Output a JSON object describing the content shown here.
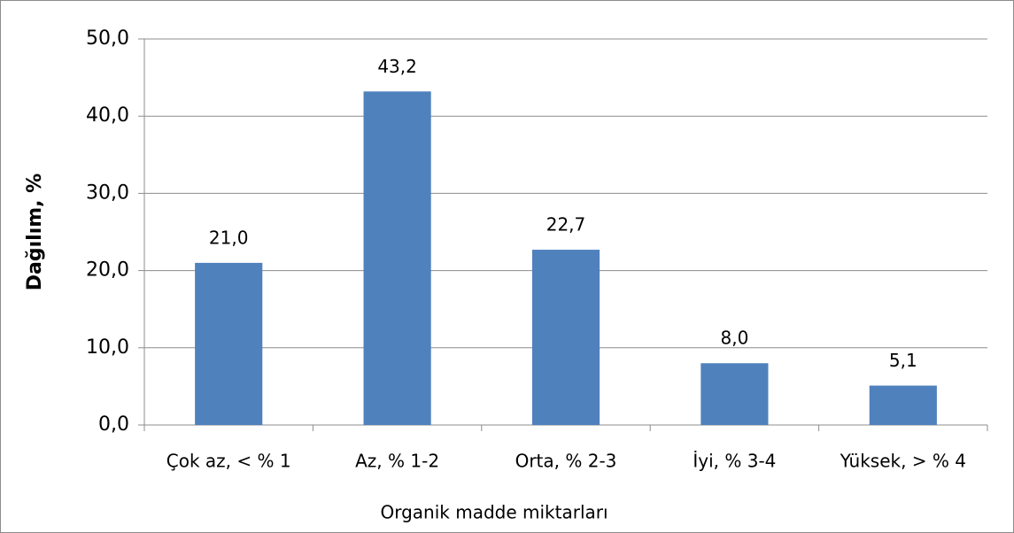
{
  "chart_data": {
    "type": "bar",
    "x_label": "Organik madde miktarları",
    "y_label": "Dağılım, %",
    "categories": [
      "Çok az, < % 1",
      "Az, % 1-2",
      "Orta, % 2-3",
      "İyi, % 3-4",
      "Yüksek, > % 4"
    ],
    "values": [
      21.0,
      43.2,
      22.7,
      8.0,
      5.1
    ],
    "value_labels": [
      "21,0",
      "43,2",
      "22,7",
      "8,0",
      "5,1"
    ],
    "color": "#4f81bd",
    "ylim": [
      0,
      50
    ],
    "yticks": [
      {
        "value": 0,
        "label": "0,0"
      },
      {
        "value": 10,
        "label": "10,0"
      },
      {
        "value": 20,
        "label": "20,0"
      },
      {
        "value": 30,
        "label": "30,0"
      },
      {
        "value": 40,
        "label": "40,0"
      },
      {
        "value": 50,
        "label": "50,0"
      }
    ],
    "grid": true
  }
}
